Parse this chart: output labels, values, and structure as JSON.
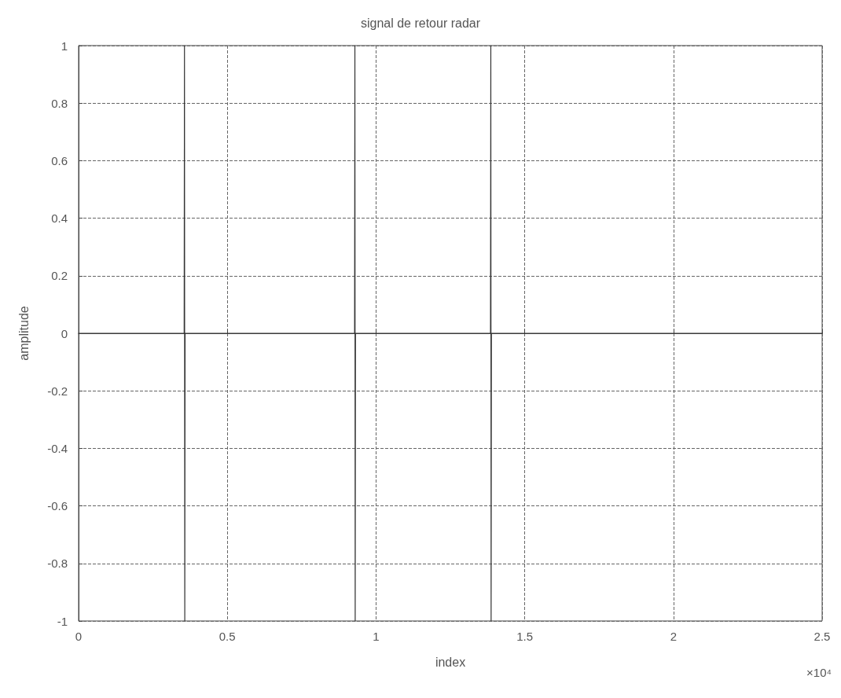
{
  "chart_data": {
    "type": "line",
    "title": "signal de retour radar",
    "xlabel": "index",
    "ylabel": "amplitude",
    "x": [
      0,
      0.355,
      0.356,
      0.357,
      0.358,
      0.928,
      0.929,
      0.93,
      0.931,
      1.385,
      1.386,
      1.387,
      1.388,
      2.5
    ],
    "series": [
      {
        "color": "#333333",
        "values": [
          0,
          0,
          1,
          -1,
          0,
          0,
          1,
          -1,
          0,
          0,
          1,
          -1,
          0,
          0
        ]
      }
    ],
    "xlim": [
      0,
      2.5
    ],
    "xticks": [
      0,
      0.5,
      1,
      1.5,
      2,
      2.5
    ],
    "ylim": [
      -1,
      1
    ],
    "yticks": [
      -1,
      -0.8,
      -0.6,
      -0.4,
      -0.2,
      0,
      0.2,
      0.4,
      0.6,
      0.8,
      1
    ],
    "grid": true,
    "line_style": "solid",
    "marker": "none",
    "annotations": [
      "×10⁴"
    ]
  }
}
